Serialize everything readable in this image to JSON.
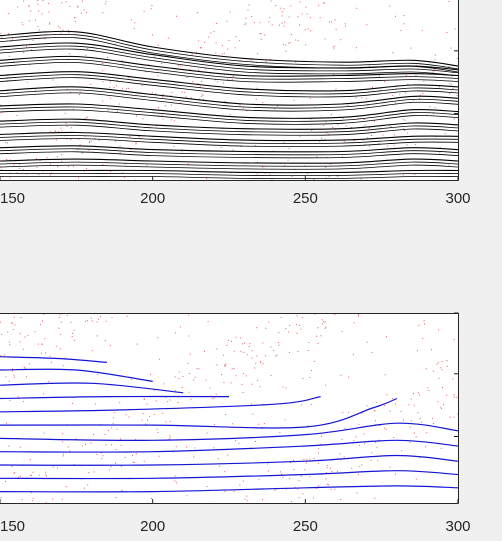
{
  "chart_data": [
    {
      "type": "line",
      "panel": "top",
      "x_ticks": [
        150,
        200,
        250,
        300
      ],
      "x_tick_labels": [
        "150",
        "200",
        "250",
        "300"
      ],
      "xlim": [
        150,
        300
      ],
      "ylim": [
        0,
        1
      ],
      "grid": false,
      "line_color": "#000000",
      "dot_color": "#e06060",
      "background": "#ffffff",
      "series": [
        {
          "x": [
            150,
            175,
            200,
            230,
            262,
            285,
            300
          ],
          "y": [
            0.76,
            0.78,
            0.7,
            0.64,
            0.62,
            0.63,
            0.6
          ]
        },
        {
          "x": [
            150,
            175,
            200,
            230,
            262,
            285,
            300
          ],
          "y": [
            0.7,
            0.72,
            0.66,
            0.6,
            0.59,
            0.6,
            0.58
          ]
        },
        {
          "x": [
            150,
            175,
            200,
            230,
            262,
            285,
            300
          ],
          "y": [
            0.63,
            0.65,
            0.6,
            0.55,
            0.55,
            0.56,
            0.55
          ]
        },
        {
          "x": [
            150,
            175,
            200,
            230,
            262,
            285,
            300
          ],
          "y": [
            0.55,
            0.57,
            0.53,
            0.48,
            0.47,
            0.5,
            0.49
          ]
        },
        {
          "x": [
            150,
            175,
            200,
            230,
            262,
            285,
            300
          ],
          "y": [
            0.47,
            0.49,
            0.45,
            0.4,
            0.4,
            0.44,
            0.43
          ]
        },
        {
          "x": [
            150,
            175,
            200,
            230,
            262,
            285,
            300
          ],
          "y": [
            0.39,
            0.4,
            0.37,
            0.33,
            0.33,
            0.37,
            0.36
          ]
        },
        {
          "x": [
            150,
            175,
            200,
            230,
            262,
            285,
            300
          ],
          "y": [
            0.31,
            0.32,
            0.29,
            0.27,
            0.27,
            0.3,
            0.29
          ]
        },
        {
          "x": [
            150,
            175,
            200,
            230,
            262,
            285,
            300
          ],
          "y": [
            0.24,
            0.25,
            0.23,
            0.21,
            0.21,
            0.23,
            0.23
          ]
        },
        {
          "x": [
            150,
            175,
            200,
            230,
            262,
            285,
            300
          ],
          "y": [
            0.17,
            0.18,
            0.16,
            0.15,
            0.15,
            0.17,
            0.16
          ]
        },
        {
          "x": [
            150,
            175,
            200,
            230,
            262,
            285,
            300
          ],
          "y": [
            0.1,
            0.11,
            0.1,
            0.09,
            0.09,
            0.11,
            0.1
          ]
        },
        {
          "x": [
            150,
            175,
            200,
            230,
            262,
            285,
            300
          ],
          "y": [
            0.05,
            0.05,
            0.05,
            0.04,
            0.04,
            0.05,
            0.05
          ]
        }
      ]
    },
    {
      "type": "line",
      "panel": "bottom",
      "x_ticks": [
        150,
        200,
        250,
        300
      ],
      "x_tick_labels": [
        "150",
        "200",
        "250",
        "300"
      ],
      "xlim": [
        150,
        300
      ],
      "ylim": [
        0,
        1
      ],
      "grid": false,
      "line_color": "#1515d6",
      "dot_color": "#e06060",
      "background": "#ffffff",
      "series": [
        {
          "x": [
            150,
            170,
            185
          ],
          "y": [
            0.77,
            0.76,
            0.74
          ]
        },
        {
          "x": [
            150,
            175,
            200
          ],
          "y": [
            0.7,
            0.7,
            0.64
          ]
        },
        {
          "x": [
            150,
            180,
            210
          ],
          "y": [
            0.62,
            0.63,
            0.58
          ]
        },
        {
          "x": [
            150,
            185,
            225
          ],
          "y": [
            0.55,
            0.56,
            0.56
          ]
        },
        {
          "x": [
            150,
            190,
            240,
            255
          ],
          "y": [
            0.48,
            0.49,
            0.52,
            0.56
          ]
        },
        {
          "x": [
            150,
            200,
            250,
            272,
            280
          ],
          "y": [
            0.41,
            0.41,
            0.4,
            0.5,
            0.55
          ]
        },
        {
          "x": [
            150,
            200,
            250,
            280,
            300
          ],
          "y": [
            0.34,
            0.33,
            0.36,
            0.42,
            0.38
          ]
        },
        {
          "x": [
            150,
            200,
            250,
            280,
            300
          ],
          "y": [
            0.27,
            0.27,
            0.3,
            0.33,
            0.3
          ]
        },
        {
          "x": [
            150,
            200,
            250,
            280,
            300
          ],
          "y": [
            0.2,
            0.2,
            0.22,
            0.25,
            0.22
          ]
        },
        {
          "x": [
            150,
            200,
            250,
            280,
            300
          ],
          "y": [
            0.13,
            0.13,
            0.15,
            0.17,
            0.15
          ]
        },
        {
          "x": [
            150,
            200,
            250,
            280,
            300
          ],
          "y": [
            0.06,
            0.06,
            0.08,
            0.09,
            0.08
          ]
        }
      ]
    }
  ]
}
